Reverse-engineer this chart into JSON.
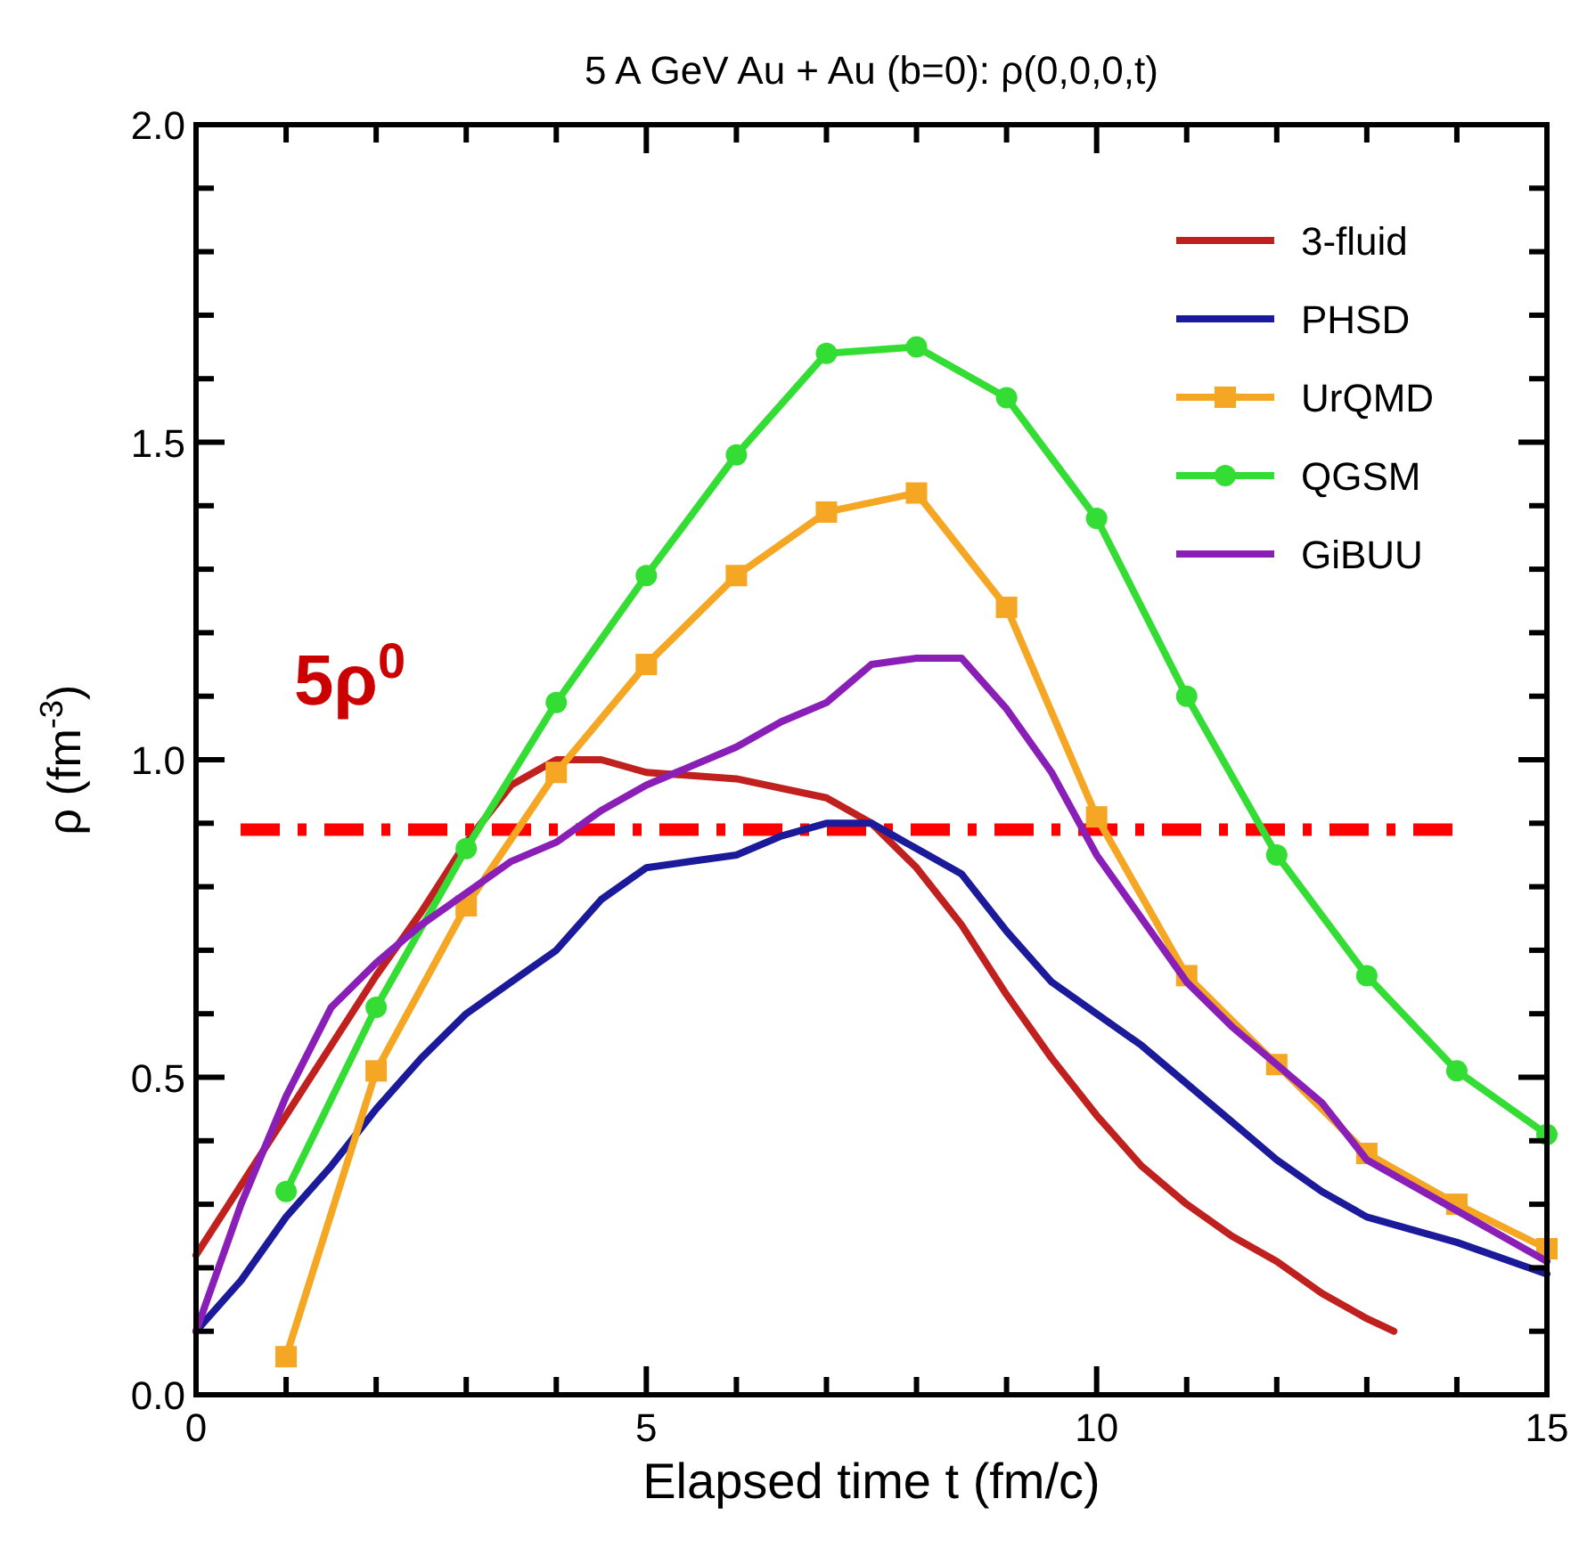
{
  "chart_data": {
    "type": "line",
    "title": "5 A GeV Au + Au (b=0):  ρ(0,0,0,t)",
    "xlabel": "Elapsed time t (fm/c)",
    "ylabel": "ρ  (fm$^{-3}$)",
    "xlim": [
      0,
      15
    ],
    "ylim": [
      0,
      2
    ],
    "xticks": [
      0,
      {
        "value": 1,
        "label": null
      },
      {
        "value": 2,
        "label": null
      },
      {
        "value": 3,
        "label": null
      },
      {
        "value": 4,
        "label": null
      },
      5,
      {
        "value": 6,
        "label": null
      },
      {
        "value": 7,
        "label": null
      },
      {
        "value": 8,
        "label": null
      },
      {
        "value": 9,
        "label": null
      },
      10,
      {
        "value": 11,
        "label": null
      },
      {
        "value": 12,
        "label": null
      },
      {
        "value": 13,
        "label": null
      },
      {
        "value": 14,
        "label": null
      },
      15
    ],
    "yticks": [
      {
        "value": 0,
        "label": "0.0"
      },
      {
        "value": 0.1,
        "label": null
      },
      {
        "value": 0.2,
        "label": null
      },
      {
        "value": 0.3,
        "label": null
      },
      {
        "value": 0.4,
        "label": null
      },
      {
        "value": 0.5,
        "label": "0.5"
      },
      {
        "value": 0.6,
        "label": null
      },
      {
        "value": 0.7,
        "label": null
      },
      {
        "value": 0.8,
        "label": null
      },
      {
        "value": 0.9,
        "label": null
      },
      {
        "value": 1,
        "label": "1.0"
      },
      {
        "value": 1.1,
        "label": null
      },
      {
        "value": 1.2,
        "label": null
      },
      {
        "value": 1.3,
        "label": null
      },
      {
        "value": 1.4,
        "label": null
      },
      {
        "value": 1.5,
        "label": "1.5"
      },
      {
        "value": 1.6,
        "label": null
      },
      {
        "value": 1.7,
        "label": null
      },
      {
        "value": 1.8,
        "label": null
      },
      {
        "value": 1.9,
        "label": null
      },
      {
        "value": 2,
        "label": "2.0"
      }
    ],
    "grid": false,
    "legend": "top right",
    "ref_lines": [
      {
        "axis": "y",
        "value": 0.89,
        "label": "5ρ$^{0}$",
        "color": "#ff0000",
        "line_style": "dashed"
      }
    ],
    "series": [
      {
        "name": "3-fluid",
        "color": "#c0201e",
        "marker": "none",
        "x": [
          0,
          0.5,
          1,
          1.5,
          2,
          2.5,
          3,
          3.5,
          4,
          4.5,
          5,
          6,
          7,
          7.5,
          8,
          8.5,
          9,
          9.5,
          10,
          10.5,
          11,
          11.5,
          12,
          12.5,
          13,
          13.3
        ],
        "values": [
          0.22,
          0.33,
          0.44,
          0.55,
          0.66,
          0.76,
          0.87,
          0.96,
          1.0,
          1.0,
          0.98,
          0.97,
          0.94,
          0.9,
          0.83,
          0.74,
          0.63,
          0.53,
          0.44,
          0.36,
          0.3,
          0.25,
          0.21,
          0.16,
          0.12,
          0.1
        ]
      },
      {
        "name": "PHSD",
        "color": "#1a1a9a",
        "marker": "none",
        "x": [
          0,
          0.5,
          1,
          1.5,
          2,
          2.5,
          3,
          3.5,
          4,
          4.5,
          5,
          5.5,
          6,
          6.5,
          7,
          7.5,
          8,
          8.5,
          9,
          9.5,
          10,
          10.5,
          11,
          11.5,
          12,
          12.5,
          13,
          13.5,
          14,
          15
        ],
        "values": [
          0.1,
          0.18,
          0.28,
          0.36,
          0.45,
          0.53,
          0.6,
          0.65,
          0.7,
          0.78,
          0.83,
          0.84,
          0.85,
          0.88,
          0.9,
          0.9,
          0.86,
          0.82,
          0.73,
          0.65,
          0.6,
          0.55,
          0.49,
          0.43,
          0.37,
          0.32,
          0.28,
          0.26,
          0.24,
          0.19
        ]
      },
      {
        "name": "UrQMD",
        "color": "#f5a623",
        "marker": "square",
        "x": [
          1,
          2,
          3,
          4,
          5,
          6,
          7,
          8,
          9,
          10,
          11,
          12,
          13,
          14,
          15
        ],
        "values": [
          0.06,
          0.51,
          0.77,
          0.98,
          1.15,
          1.29,
          1.39,
          1.42,
          1.24,
          0.91,
          0.66,
          0.52,
          0.38,
          0.3,
          0.23
        ]
      },
      {
        "name": "QGSM",
        "color": "#33dd33",
        "marker": "circle",
        "x": [
          1,
          2,
          3,
          4,
          5,
          6,
          7,
          8,
          9,
          10,
          11,
          12,
          13,
          14,
          15
        ],
        "values": [
          0.32,
          0.61,
          0.86,
          1.09,
          1.29,
          1.48,
          1.64,
          1.65,
          1.57,
          1.38,
          1.1,
          0.85,
          0.66,
          0.51,
          0.41
        ]
      },
      {
        "name": "GiBUU",
        "color": "#8a1fb8",
        "marker": "none",
        "x": [
          0,
          0.5,
          1,
          1.5,
          2,
          2.5,
          3,
          3.5,
          4,
          4.5,
          5,
          5.5,
          6,
          6.5,
          7,
          7.5,
          8,
          8.5,
          9,
          9.5,
          10,
          10.5,
          11,
          11.5,
          12,
          12.5,
          13,
          13.5,
          14,
          14.5,
          15
        ],
        "values": [
          0.1,
          0.3,
          0.47,
          0.61,
          0.68,
          0.74,
          0.79,
          0.84,
          0.87,
          0.92,
          0.96,
          0.99,
          1.02,
          1.06,
          1.09,
          1.15,
          1.16,
          1.16,
          1.08,
          0.98,
          0.85,
          0.75,
          0.65,
          0.58,
          0.52,
          0.46,
          0.37,
          0.33,
          0.29,
          0.25,
          0.21
        ]
      }
    ]
  }
}
